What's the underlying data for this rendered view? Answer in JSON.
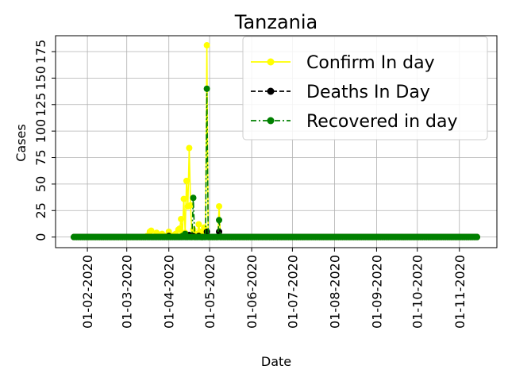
{
  "chart_data": {
    "type": "line",
    "title": "Tanzania",
    "xlabel": "Date",
    "ylabel": "Cases",
    "x_range": [
      "2020-01-22",
      "2020-11-14"
    ],
    "ylim": [
      -10,
      190
    ],
    "x_ticks": [
      "01-02-2020",
      "01-03-2020",
      "01-04-2020",
      "01-05-2020",
      "01-06-2020",
      "01-07-2020",
      "01-08-2020",
      "01-09-2020",
      "01-10-2020",
      "01-11-2020"
    ],
    "y_ticks": [
      "0",
      "25",
      "50",
      "75",
      "100",
      "125",
      "150",
      "175"
    ],
    "y_tick_values": [
      0,
      25,
      50,
      75,
      100,
      125,
      150,
      175
    ],
    "grid": true,
    "legend_position": "top-right",
    "series": [
      {
        "name": "Confirm In day",
        "color": "#ffff00",
        "linestyle": "solid",
        "marker": "circle",
        "nonzero": [
          {
            "date": "2020-03-16",
            "value": 1
          },
          {
            "date": "2020-03-18",
            "value": 5
          },
          {
            "date": "2020-03-19",
            "value": 6
          },
          {
            "date": "2020-03-22",
            "value": 1
          },
          {
            "date": "2020-03-23",
            "value": 4
          },
          {
            "date": "2020-03-25",
            "value": 2
          },
          {
            "date": "2020-03-27",
            "value": 3
          },
          {
            "date": "2020-03-30",
            "value": 1
          },
          {
            "date": "2020-04-01",
            "value": 5
          },
          {
            "date": "2020-04-03",
            "value": 1
          },
          {
            "date": "2020-04-05",
            "value": 2
          },
          {
            "date": "2020-04-06",
            "value": 3
          },
          {
            "date": "2020-04-08",
            "value": 7
          },
          {
            "date": "2020-04-09",
            "value": 8
          },
          {
            "date": "2020-04-10",
            "value": 17
          },
          {
            "date": "2020-04-11",
            "value": 3
          },
          {
            "date": "2020-04-12",
            "value": 36
          },
          {
            "date": "2020-04-13",
            "value": 4
          },
          {
            "date": "2020-04-14",
            "value": 53
          },
          {
            "date": "2020-04-15",
            "value": 29
          },
          {
            "date": "2020-04-16",
            "value": 84
          },
          {
            "date": "2020-04-17",
            "value": 30
          },
          {
            "date": "2020-04-19",
            "value": 7
          },
          {
            "date": "2020-04-22",
            "value": 3
          },
          {
            "date": "2020-04-23",
            "value": 12
          },
          {
            "date": "2020-04-24",
            "value": 5
          },
          {
            "date": "2020-04-26",
            "value": 4
          },
          {
            "date": "2020-04-27",
            "value": 9
          },
          {
            "date": "2020-04-28",
            "value": 3
          },
          {
            "date": "2020-04-29",
            "value": 181
          },
          {
            "date": "2020-05-08",
            "value": 29
          }
        ]
      },
      {
        "name": "Deaths In Day",
        "color": "#000000",
        "linestyle": "dashed",
        "marker": "circle",
        "nonzero": [
          {
            "date": "2020-04-01",
            "value": 1
          },
          {
            "date": "2020-04-12",
            "value": 1
          },
          {
            "date": "2020-04-16",
            "value": 2
          },
          {
            "date": "2020-04-19",
            "value": 1
          },
          {
            "date": "2020-04-23",
            "value": 1
          },
          {
            "date": "2020-04-29",
            "value": 5
          },
          {
            "date": "2020-05-08",
            "value": 5
          }
        ]
      },
      {
        "name": "Recovered in day",
        "color": "#008000",
        "linestyle": "dashdot",
        "marker": "circle",
        "nonzero": [
          {
            "date": "2020-04-11",
            "value": 1
          },
          {
            "date": "2020-04-13",
            "value": 3
          },
          {
            "date": "2020-04-19",
            "value": 37
          },
          {
            "date": "2020-04-29",
            "value": 140
          },
          {
            "date": "2020-05-08",
            "value": 16
          }
        ]
      }
    ]
  }
}
